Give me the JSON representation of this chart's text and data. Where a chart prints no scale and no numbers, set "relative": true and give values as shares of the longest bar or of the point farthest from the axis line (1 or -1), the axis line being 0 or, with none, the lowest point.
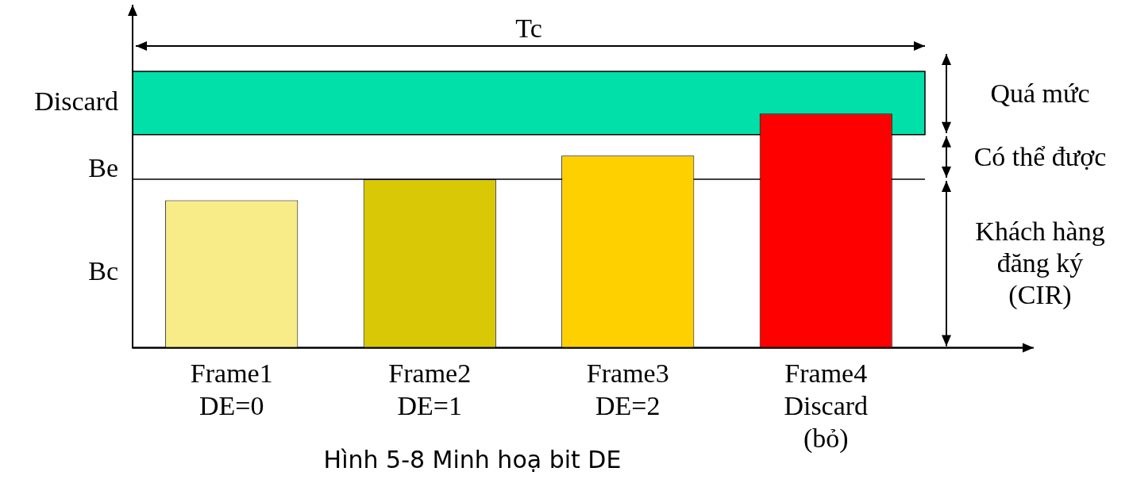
{
  "chart_data": {
    "type": "bar",
    "relative": true,
    "title": "Hình 5-8 Minh hoạ bit DE",
    "categories": [
      "Frame1\nDE=0",
      "Frame2\nDE=1",
      "Frame3\nDE=2",
      "Frame4\nDiscard\n(bỏ)"
    ],
    "values": [
      0.63,
      0.72,
      0.82,
      1
    ],
    "colors": [
      "#f7ec88",
      "#d8c805",
      "#ffd000",
      "#ff0000"
    ],
    "ref_lines": [
      {
        "axis": "y",
        "value": 0.72,
        "label": "Be",
        "color": "#000000"
      }
    ],
    "bands": [
      {
        "axis": "y",
        "from": 0.91,
        "to": 1.18,
        "label": "Discard",
        "color": "#00e0a8"
      }
    ],
    "annotations": [
      "Tc",
      "Bc",
      "Quá mức",
      "Có thể được",
      "Khách hàng\nđăng ký\n(CIR)"
    ],
    "grid": false,
    "legend": false
  }
}
